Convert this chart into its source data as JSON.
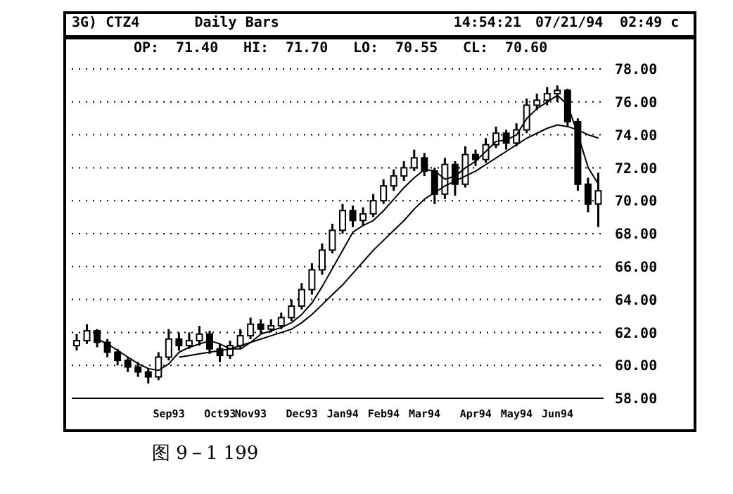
{
  "chart_data": {
    "type": "candlestick",
    "title": "3G) CTZ4",
    "subtitle": "Daily Bars",
    "annotations": [
      "14:54:21",
      "07/21/94",
      "02:49 c",
      "OP:",
      "71.40",
      "HI:",
      "71.70",
      "LO:",
      "70.55",
      "CL:",
      "70.60",
      "图 9－1 199"
    ],
    "categories": [
      null,
      null,
      null,
      null,
      null,
      null,
      null,
      null,
      null,
      "Sep93",
      null,
      null,
      null,
      null,
      "Oct93",
      null,
      null,
      "Nov93",
      null,
      null,
      null,
      null,
      "Dec93",
      null,
      null,
      null,
      "Jan94",
      null,
      null,
      null,
      "Feb94",
      null,
      null,
      null,
      "Mar94",
      null,
      null,
      null,
      null,
      "Apr94",
      null,
      null,
      null,
      "May94",
      null,
      null,
      null,
      "Jun94",
      null,
      null,
      null,
      null
    ],
    "color": "#000000",
    "ohlc": [
      [
        61.2,
        61.9,
        60.9,
        61.5
      ],
      [
        61.5,
        62.5,
        61.3,
        62.1
      ],
      [
        62.1,
        62.2,
        61.1,
        61.4
      ],
      [
        61.4,
        61.6,
        60.5,
        60.8
      ],
      [
        60.8,
        61.0,
        60.0,
        60.3
      ],
      [
        60.3,
        60.5,
        59.6,
        59.9
      ],
      [
        59.9,
        60.2,
        59.3,
        59.6
      ],
      [
        59.6,
        59.8,
        58.9,
        59.3
      ],
      [
        59.3,
        60.8,
        59.1,
        60.5
      ],
      [
        60.5,
        62.2,
        60.3,
        61.6
      ],
      [
        61.6,
        62.0,
        60.9,
        61.2
      ],
      [
        61.2,
        62.0,
        61.0,
        61.5
      ],
      [
        61.5,
        62.4,
        61.2,
        61.9
      ],
      [
        61.9,
        62.1,
        60.7,
        61.0
      ],
      [
        61.0,
        61.3,
        60.2,
        60.6
      ],
      [
        60.6,
        61.5,
        60.4,
        61.2
      ],
      [
        61.2,
        62.2,
        61.0,
        61.8
      ],
      [
        61.8,
        62.9,
        61.6,
        62.5
      ],
      [
        62.5,
        62.8,
        61.9,
        62.2
      ],
      [
        62.2,
        62.8,
        62.0,
        62.4
      ],
      [
        62.4,
        63.2,
        62.2,
        62.9
      ],
      [
        62.9,
        64.0,
        62.7,
        63.6
      ],
      [
        63.6,
        65.0,
        63.4,
        64.6
      ],
      [
        64.6,
        66.2,
        64.3,
        65.8
      ],
      [
        65.8,
        67.4,
        65.5,
        67.0
      ],
      [
        67.0,
        68.6,
        66.8,
        68.2
      ],
      [
        68.2,
        69.8,
        68.0,
        69.4
      ],
      [
        69.4,
        69.7,
        68.4,
        68.8
      ],
      [
        68.8,
        69.6,
        68.5,
        69.2
      ],
      [
        69.2,
        70.4,
        69.0,
        70.0
      ],
      [
        70.0,
        71.3,
        69.8,
        70.9
      ],
      [
        70.9,
        71.9,
        70.6,
        71.5
      ],
      [
        71.5,
        72.4,
        71.2,
        72.0
      ],
      [
        72.0,
        73.1,
        71.8,
        72.6
      ],
      [
        72.6,
        72.9,
        71.5,
        71.8
      ],
      [
        71.8,
        72.0,
        69.8,
        70.4
      ],
      [
        70.4,
        72.6,
        70.1,
        72.2
      ],
      [
        72.2,
        72.4,
        70.3,
        71.0
      ],
      [
        71.0,
        73.3,
        70.8,
        72.8
      ],
      [
        72.8,
        73.1,
        72.1,
        72.5
      ],
      [
        72.5,
        73.8,
        72.3,
        73.4
      ],
      [
        73.4,
        74.5,
        73.2,
        74.1
      ],
      [
        74.1,
        74.3,
        73.1,
        73.5
      ],
      [
        73.5,
        74.7,
        73.3,
        74.3
      ],
      [
        74.3,
        76.2,
        74.1,
        75.8
      ],
      [
        75.8,
        76.5,
        75.5,
        76.1
      ],
      [
        76.1,
        76.9,
        75.8,
        76.5
      ],
      [
        76.5,
        77.0,
        76.0,
        76.7
      ],
      [
        76.7,
        76.8,
        74.5,
        74.8
      ],
      [
        74.8,
        75.0,
        70.6,
        71.0
      ],
      [
        71.0,
        71.4,
        69.3,
        69.8
      ],
      [
        69.8,
        71.7,
        68.4,
        70.6
      ]
    ],
    "series": [
      {
        "type": "line",
        "color": "#000000",
        "values": [
          null,
          null,
          61.6,
          61.3,
          60.9,
          60.5,
          60.1,
          59.8,
          59.7,
          60.1,
          60.8,
          61.1,
          61.3,
          61.5,
          61.3,
          61.0,
          61.0,
          61.4,
          61.9,
          62.1,
          62.3,
          62.6,
          63.1,
          63.8,
          64.8,
          65.9,
          67.0,
          68.1,
          68.5,
          68.8,
          69.4,
          70.1,
          70.8,
          71.4,
          71.9,
          71.8,
          71.3,
          71.5,
          72.0,
          72.4,
          73.0,
          73.6,
          73.7,
          74.0,
          75.0,
          75.6,
          76.0,
          76.4,
          75.8,
          74.0,
          72.0,
          71.0
        ]
      },
      {
        "type": "line",
        "color": "#000000",
        "values": [
          null,
          null,
          null,
          null,
          null,
          null,
          null,
          null,
          null,
          null,
          60.5,
          60.6,
          60.7,
          60.8,
          60.9,
          61.0,
          61.2,
          61.4,
          61.6,
          61.8,
          62.0,
          62.2,
          62.6,
          63.1,
          63.7,
          64.3,
          64.9,
          65.6,
          66.3,
          67.0,
          67.6,
          68.2,
          68.8,
          69.5,
          70.1,
          70.5,
          70.9,
          71.2,
          71.5,
          71.8,
          72.2,
          72.6,
          73.0,
          73.4,
          73.8,
          74.1,
          74.4,
          74.6,
          74.5,
          74.3,
          74.0,
          73.8
        ]
      }
    ],
    "ylim": [
      58,
      78
    ],
    "yticks": [
      {
        "value": 58,
        "label": "58.00"
      },
      {
        "value": 60,
        "label": "60.00"
      },
      {
        "value": 62,
        "label": "62.00"
      },
      {
        "value": 64,
        "label": "64.00"
      },
      {
        "value": 66,
        "label": "66.00"
      },
      {
        "value": 68,
        "label": "68.00"
      },
      {
        "value": 70,
        "label": "70.00"
      },
      {
        "value": 72,
        "label": "72.00"
      },
      {
        "value": 74,
        "label": "74.00"
      },
      {
        "value": 76,
        "label": "76.00"
      },
      {
        "value": 78,
        "label": "78.00"
      }
    ],
    "grid": true,
    "line_style": "solid",
    "marker": "none"
  }
}
